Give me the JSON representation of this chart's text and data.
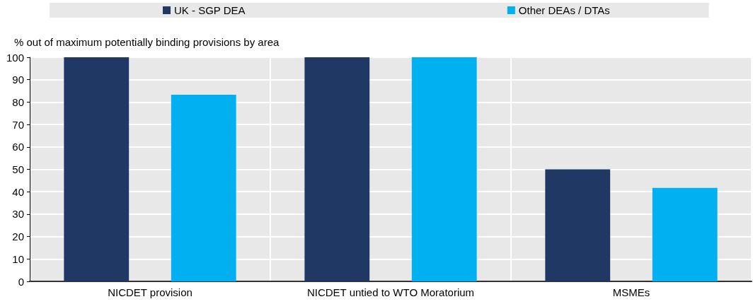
{
  "chart_data": {
    "type": "bar",
    "ylabel": "% out of maximum potentially binding provisions by area",
    "categories": [
      "NICDET provision",
      "NICDET untied to WTO Moratorium",
      "MSMEs"
    ],
    "series": [
      {
        "name": "UK - SGP DEA",
        "color": "#203864",
        "values": [
          100,
          100,
          50
        ]
      },
      {
        "name": "Other DEAs / DTAs",
        "color": "#00b0f0",
        "values": [
          83.3,
          100,
          41.7
        ]
      }
    ],
    "ylim": [
      0,
      100
    ],
    "yticks": [
      0,
      10,
      20,
      30,
      40,
      50,
      60,
      70,
      80,
      90,
      100
    ],
    "grid": true,
    "legend": "top"
  }
}
